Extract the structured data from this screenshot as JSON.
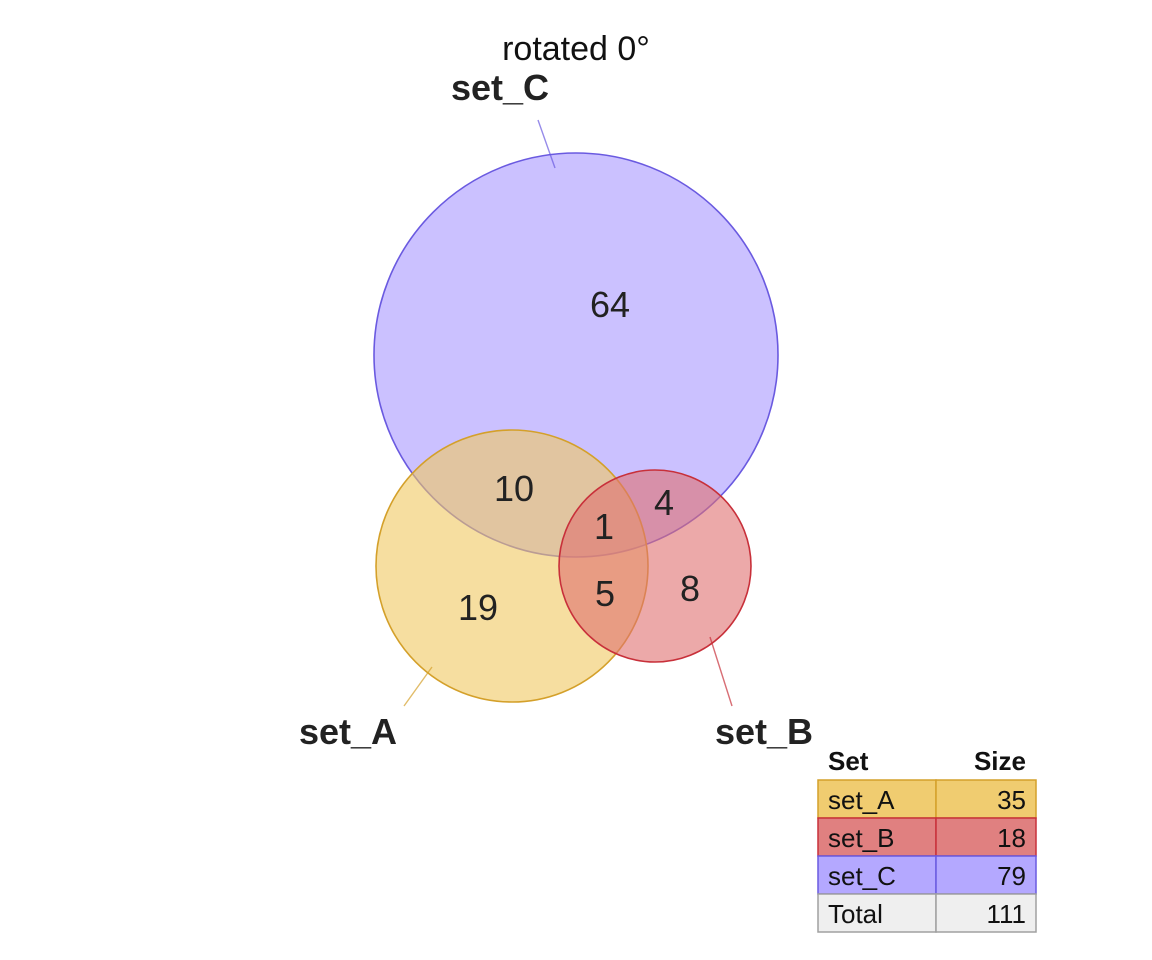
{
  "chart_data": {
    "type": "venn",
    "title": "rotated 0°",
    "sets": [
      {
        "name": "set_A",
        "size": 35,
        "color": "#f0c860",
        "stroke": "#d4a02a"
      },
      {
        "name": "set_B",
        "size": 18,
        "color": "#e07070",
        "stroke": "#c8303a"
      },
      {
        "name": "set_C",
        "size": 79,
        "color": "#a898ff",
        "stroke": "#6a5ae0"
      }
    ],
    "regions": [
      {
        "sets": [
          "set_C"
        ],
        "value": 64
      },
      {
        "sets": [
          "set_A",
          "set_C"
        ],
        "value": 10
      },
      {
        "sets": [
          "set_B",
          "set_C"
        ],
        "value": 4
      },
      {
        "sets": [
          "set_A",
          "set_B",
          "set_C"
        ],
        "value": 1
      },
      {
        "sets": [
          "set_A"
        ],
        "value": 19
      },
      {
        "sets": [
          "set_A",
          "set_B"
        ],
        "value": 5
      },
      {
        "sets": [
          "set_B"
        ],
        "value": 8
      }
    ],
    "legend": {
      "headers": [
        "Set",
        "Size"
      ],
      "rows": [
        {
          "label": "set_A",
          "value": "35",
          "color": "#f0cc70"
        },
        {
          "label": "set_B",
          "value": "18",
          "color": "#e08080"
        },
        {
          "label": "set_C",
          "value": "79",
          "color": "#b4a8ff"
        },
        {
          "label": "Total",
          "value": "111",
          "color": "#efefef"
        }
      ]
    }
  }
}
